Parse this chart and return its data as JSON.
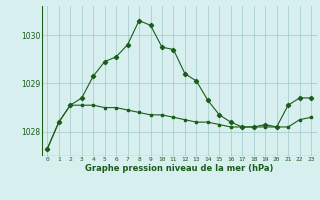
{
  "title": "Graphe pression niveau de la mer (hPa)",
  "background_color": "#d8eff0",
  "grid_color": "#a0c8c8",
  "line_color": "#1a5c1a",
  "x_labels": [
    "0",
    "1",
    "2",
    "3",
    "4",
    "5",
    "6",
    "7",
    "8",
    "9",
    "10",
    "11",
    "12",
    "13",
    "14",
    "15",
    "16",
    "17",
    "18",
    "19",
    "20",
    "21",
    "22",
    "23"
  ],
  "xlim": [
    -0.5,
    23.5
  ],
  "ylim": [
    1027.5,
    1030.6
  ],
  "yticks": [
    1028,
    1029,
    1030
  ],
  "series1": [
    1027.65,
    1028.2,
    1028.55,
    1028.7,
    1029.15,
    1029.45,
    1029.55,
    1029.8,
    1030.3,
    1030.2,
    1029.75,
    1029.7,
    1029.2,
    1029.05,
    1028.65,
    1028.35,
    1028.2,
    1028.1,
    1028.1,
    1028.15,
    1028.1,
    1028.55,
    1028.7,
    1028.7
  ],
  "series2": [
    1027.65,
    1028.2,
    1028.55,
    1028.55,
    1028.55,
    1028.5,
    1028.5,
    1028.45,
    1028.4,
    1028.35,
    1028.35,
    1028.3,
    1028.25,
    1028.2,
    1028.2,
    1028.15,
    1028.1,
    1028.1,
    1028.1,
    1028.1,
    1028.1,
    1028.1,
    1028.25,
    1028.3
  ]
}
